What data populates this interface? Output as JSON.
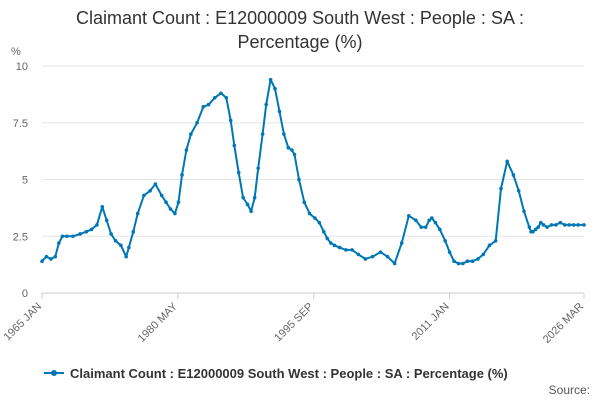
{
  "title_lines": [
    "Claimant Count : E12000009 South West : People : SA :",
    "Percentage (%)"
  ],
  "source_label": "Source:",
  "colors": {
    "series": "#0077b5",
    "grid": "#e6e6e6",
    "axis": "#cccccc",
    "text": "#333333",
    "tick": "#666666"
  },
  "chart_data": {
    "type": "line",
    "title": "Claimant Count : E12000009 South West : People : SA : Percentage (%)",
    "ylabel": "%",
    "xlabel": "",
    "x_tick_labels": [
      "1965 JAN",
      "1980 MAY",
      "1995 SEP",
      "2011 JAN",
      "2026 MAR"
    ],
    "y_tick_labels": [
      "0",
      "2.5",
      "5",
      "7.5",
      "10"
    ],
    "y_ticks": [
      0,
      2.5,
      5,
      7.5,
      10
    ],
    "ylim": [
      0,
      10
    ],
    "xlim": [
      1965.0,
      2026.17
    ],
    "grid": true,
    "legend_position": "bottom",
    "series": [
      {
        "name": "Claimant Count : E12000009 South West : People : SA : Percentage (%)",
        "x": [
          1965.0,
          1965.5,
          1966.0,
          1966.5,
          1966.9,
          1967.3,
          1967.8,
          1968.5,
          1969.3,
          1970.0,
          1970.6,
          1971.2,
          1971.8,
          1972.3,
          1972.8,
          1973.3,
          1973.9,
          1974.5,
          1974.8,
          1975.3,
          1975.8,
          1976.5,
          1977.2,
          1977.8,
          1978.5,
          1979.0,
          1979.5,
          1980.0,
          1980.4,
          1980.8,
          1981.3,
          1981.8,
          1982.5,
          1983.2,
          1983.8,
          1984.5,
          1985.2,
          1985.8,
          1986.3,
          1986.7,
          1987.2,
          1987.7,
          1988.2,
          1988.6,
          1989.0,
          1989.4,
          1989.9,
          1990.3,
          1990.8,
          1991.3,
          1991.8,
          1992.3,
          1992.8,
          1993.2,
          1993.5,
          1994.0,
          1994.6,
          1995.2,
          1995.8,
          1996.3,
          1996.8,
          1997.2,
          1997.6,
          1998.0,
          1998.6,
          1999.3,
          2000.0,
          2000.7,
          2001.5,
          2002.3,
          2003.2,
          2004.0,
          2004.8,
          2005.6,
          2006.4,
          2007.2,
          2007.8,
          2008.3,
          2008.7,
          2009.0,
          2009.4,
          2009.9,
          2010.5,
          2011.0,
          2011.5,
          2012.0,
          2012.5,
          2013.0,
          2013.6,
          2014.2,
          2014.8,
          2015.5,
          2016.2,
          2016.8,
          2017.5,
          2018.2,
          2018.8,
          2019.4,
          2020.0,
          2020.2,
          2020.4,
          2020.7,
          2021.0,
          2021.3,
          2021.6,
          2022.0,
          2022.5,
          2023.0,
          2023.5,
          2024.0,
          2024.5,
          2025.0,
          2025.5,
          2026.17
        ],
        "values": [
          1.4,
          1.6,
          1.5,
          1.6,
          2.2,
          2.5,
          2.5,
          2.5,
          2.6,
          2.7,
          2.8,
          3.0,
          3.8,
          3.2,
          2.6,
          2.3,
          2.1,
          1.6,
          2.0,
          2.7,
          3.5,
          4.3,
          4.5,
          4.8,
          4.3,
          4.0,
          3.7,
          3.5,
          4.0,
          5.2,
          6.3,
          7.0,
          7.5,
          8.2,
          8.3,
          8.6,
          8.8,
          8.6,
          7.6,
          6.5,
          5.3,
          4.2,
          3.9,
          3.6,
          4.2,
          5.5,
          7.0,
          8.3,
          9.4,
          9.0,
          8.0,
          7.0,
          6.4,
          6.3,
          6.1,
          5.0,
          4.0,
          3.5,
          3.3,
          3.1,
          2.7,
          2.4,
          2.2,
          2.1,
          2.0,
          1.9,
          1.9,
          1.7,
          1.5,
          1.6,
          1.8,
          1.6,
          1.3,
          2.2,
          3.4,
          3.2,
          2.9,
          2.9,
          3.2,
          3.3,
          3.1,
          2.8,
          2.3,
          1.8,
          1.4,
          1.3,
          1.3,
          1.4,
          1.4,
          1.5,
          1.7,
          2.1,
          2.3,
          4.6,
          5.8,
          5.2,
          4.5,
          3.6,
          2.9,
          2.7,
          2.7,
          2.8,
          2.9,
          3.1,
          3.0,
          2.9,
          3.0,
          3.0,
          3.1,
          3.0,
          3.0,
          3.0,
          3.0,
          3.0
        ]
      }
    ]
  }
}
